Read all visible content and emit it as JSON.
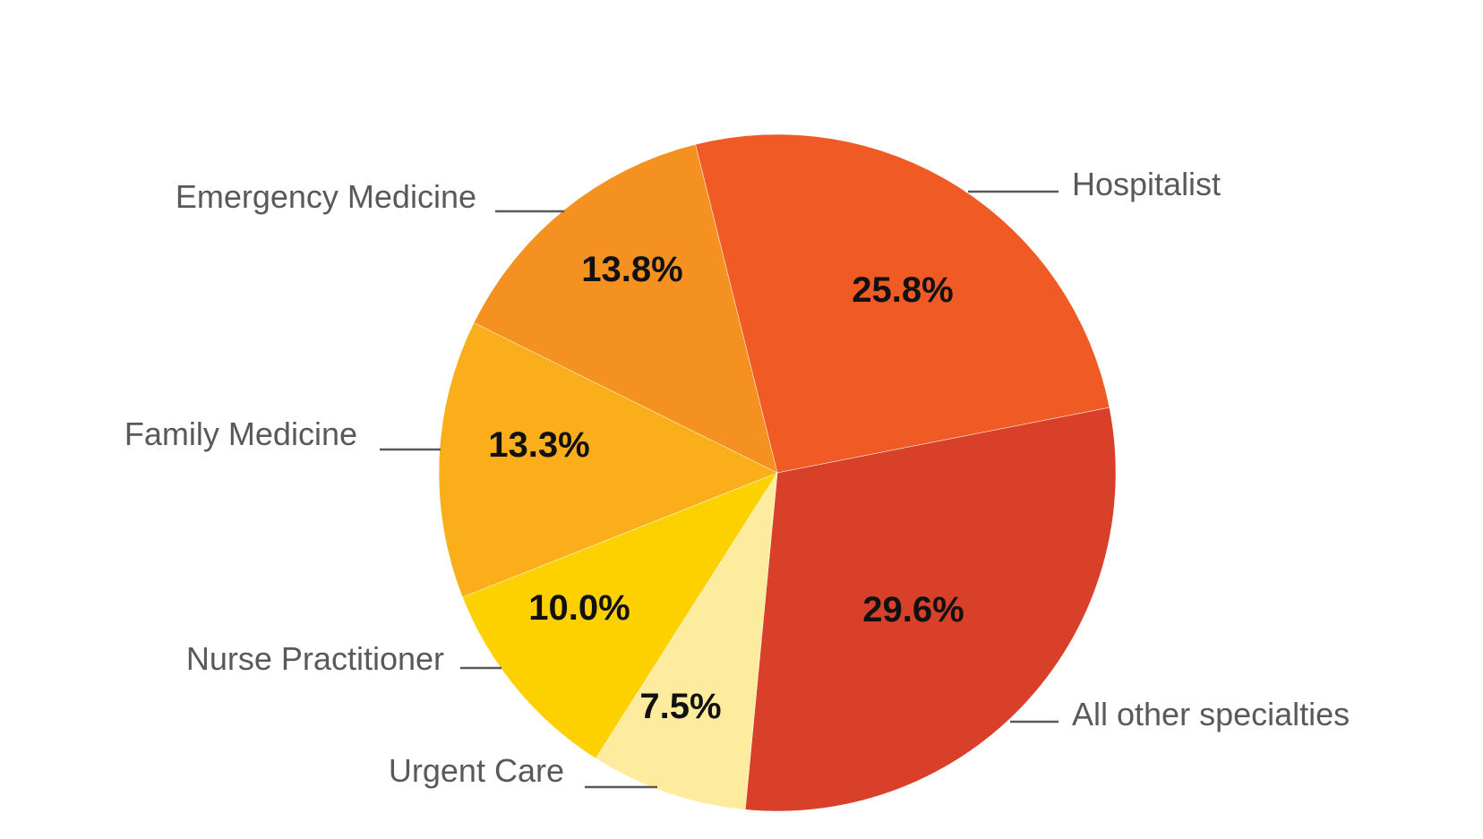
{
  "chart_data": {
    "type": "pie",
    "title": "",
    "slices": [
      {
        "name": "Hospitalist",
        "value": 25.8,
        "label": "25.8%",
        "color": "#f05a24"
      },
      {
        "name": "All other specialties",
        "value": 29.6,
        "label": "29.6%",
        "color": "#d9402a"
      },
      {
        "name": "Urgent Care",
        "value": 7.5,
        "label": "7.5%",
        "color": "#fdeb9e"
      },
      {
        "name": "Nurse Practitioner",
        "value": 10.0,
        "label": "10.0%",
        "color": "#fdd000"
      },
      {
        "name": "Family Medicine",
        "value": 13.3,
        "label": "13.3%",
        "color": "#faae1a"
      },
      {
        "name": "Emergency Medicine",
        "value": 13.8,
        "label": "13.8%",
        "color": "#f59120"
      }
    ],
    "start_angle_deg": -14,
    "direction": "clockwise",
    "legend": "none",
    "label_placement": "outside with leader lines"
  }
}
